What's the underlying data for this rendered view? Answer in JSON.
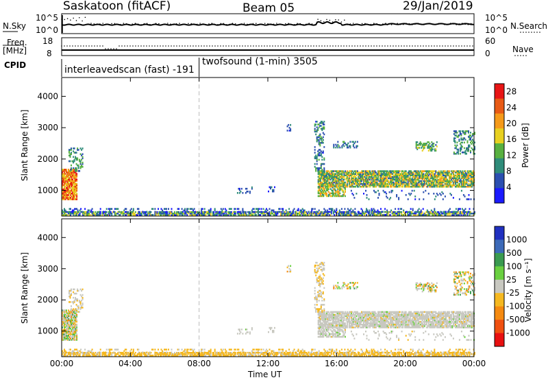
{
  "header": {
    "title": "Saskatoon (fitACF)",
    "beam": "Beam 05",
    "date": "29/Jan/2019"
  },
  "side_labels": {
    "nsky": "N.Sky",
    "nsearch": "N.Search",
    "freq": "Freq.",
    "freq_unit": "[MHz]",
    "nave": "Nave",
    "cpid": "CPID"
  },
  "noise_panel": {
    "left_ticks": [
      "10^5",
      "10^0"
    ],
    "right_ticks": [
      "10^5",
      "10^0"
    ]
  },
  "freq_panel": {
    "left_ticks": [
      "18",
      "8"
    ],
    "right_ticks": [
      "60",
      "0"
    ]
  },
  "cpid_segments": [
    {
      "label": "interleavedscan (fast) -191",
      "start_hour": 0
    },
    {
      "label": "twofsound (1-min) 3505",
      "start_hour": 8
    }
  ],
  "chart_data": [
    {
      "type": "heatmap",
      "name": "power",
      "ylabel": "Slant Range [km]",
      "xlabel": "Time UT",
      "x_ticks": [
        "00:00",
        "04:00",
        "08:00",
        "12:00",
        "16:00",
        "20:00",
        "00:00"
      ],
      "x_tick_hours": [
        0,
        4,
        8,
        12,
        16,
        20,
        24
      ],
      "y_ticks": [
        "1000",
        "2000",
        "3000",
        "4000"
      ],
      "y_tick_values": [
        1000,
        2000,
        3000,
        4000
      ],
      "ylim": [
        180,
        4600
      ],
      "xlim": [
        0,
        24
      ],
      "colorbar": {
        "label": "Power [dB]",
        "ticks": [
          "4",
          "8",
          "12",
          "16",
          "20",
          "24",
          "28"
        ],
        "tick_values": [
          4,
          8,
          12,
          16,
          20,
          24,
          28
        ],
        "range": [
          0,
          30
        ],
        "colors": [
          "#1a1aff",
          "#2b4fb0",
          "#2f8c7a",
          "#58b040",
          "#e8d020",
          "#f59a1a",
          "#e85a15",
          "#e81515"
        ]
      }
    },
    {
      "type": "heatmap",
      "name": "velocity",
      "ylabel": "Slant Range [km]",
      "xlabel": "Time UT",
      "x_ticks": [
        "00:00",
        "04:00",
        "08:00",
        "12:00",
        "16:00",
        "20:00",
        "00:00"
      ],
      "x_tick_hours": [
        0,
        4,
        8,
        12,
        16,
        20,
        24
      ],
      "y_ticks": [
        "1000",
        "2000",
        "3000",
        "4000"
      ],
      "y_tick_values": [
        1000,
        2000,
        3000,
        4000
      ],
      "ylim": [
        180,
        4600
      ],
      "xlim": [
        0,
        24
      ],
      "colorbar": {
        "label": "Velocity [m s⁻¹]",
        "ticks": [
          "1000",
          "500",
          "100",
          "25",
          "-25",
          "-100",
          "-500",
          "-1000"
        ],
        "colors": [
          "#2030c0",
          "#3c6ab8",
          "#3a9a50",
          "#6ad040",
          "#c8c8c0",
          "#f5b820",
          "#f58a10",
          "#f05010",
          "#e81010"
        ]
      }
    }
  ]
}
